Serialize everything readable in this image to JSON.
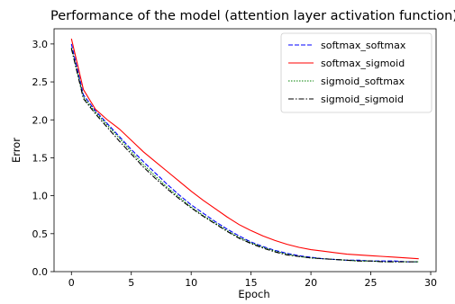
{
  "chart_data": {
    "type": "line",
    "title": "Performance of the model (attention layer activation function)",
    "xlabel": "Epoch",
    "ylabel": "Error",
    "xlim": [
      -1.45,
      30.45
    ],
    "ylim": [
      0,
      3.2
    ],
    "xticks": [
      0,
      5,
      10,
      15,
      20,
      25,
      30
    ],
    "yticks": [
      0.0,
      0.5,
      1.0,
      1.5,
      2.0,
      2.5,
      3.0
    ],
    "xtick_labels": [
      "0",
      "5",
      "10",
      "15",
      "20",
      "25",
      "30"
    ],
    "ytick_labels": [
      "0.0",
      "0.5",
      "1.0",
      "1.5",
      "2.0",
      "2.5",
      "3.0"
    ],
    "grid": false,
    "legend_position": "top-right",
    "x": [
      0,
      1,
      2,
      3,
      4,
      5,
      6,
      7,
      8,
      9,
      10,
      11,
      12,
      13,
      14,
      15,
      16,
      17,
      18,
      19,
      20,
      21,
      22,
      23,
      24,
      25,
      26,
      27,
      28,
      29
    ],
    "series": [
      {
        "name": "softmax_softmax",
        "color": "#0000ff",
        "dash": "dashed",
        "values": [
          3.0,
          2.33,
          2.12,
          1.95,
          1.78,
          1.61,
          1.45,
          1.3,
          1.15,
          1.01,
          0.88,
          0.77,
          0.66,
          0.56,
          0.47,
          0.39,
          0.33,
          0.28,
          0.24,
          0.21,
          0.19,
          0.17,
          0.16,
          0.15,
          0.15,
          0.14,
          0.14,
          0.14,
          0.13,
          0.13
        ]
      },
      {
        "name": "softmax_sigmoid",
        "color": "#ff0000",
        "dash": "solid",
        "values": [
          3.07,
          2.4,
          2.14,
          2.0,
          1.88,
          1.73,
          1.58,
          1.45,
          1.32,
          1.19,
          1.06,
          0.94,
          0.83,
          0.72,
          0.62,
          0.54,
          0.47,
          0.41,
          0.36,
          0.32,
          0.29,
          0.27,
          0.25,
          0.23,
          0.22,
          0.21,
          0.2,
          0.19,
          0.18,
          0.17
        ]
      },
      {
        "name": "sigmoid_softmax",
        "color": "#008000",
        "dash": "dotted",
        "values": [
          2.95,
          2.3,
          2.1,
          1.93,
          1.76,
          1.58,
          1.41,
          1.26,
          1.11,
          0.98,
          0.85,
          0.74,
          0.64,
          0.54,
          0.45,
          0.38,
          0.32,
          0.27,
          0.23,
          0.2,
          0.18,
          0.17,
          0.16,
          0.15,
          0.14,
          0.14,
          0.13,
          0.13,
          0.13,
          0.13
        ]
      },
      {
        "name": "sigmoid_sigmoid",
        "color": "#000000",
        "dash": "dashdot",
        "values": [
          2.94,
          2.28,
          2.08,
          1.9,
          1.72,
          1.55,
          1.38,
          1.23,
          1.09,
          0.96,
          0.84,
          0.73,
          0.63,
          0.53,
          0.44,
          0.37,
          0.31,
          0.26,
          0.22,
          0.2,
          0.18,
          0.17,
          0.16,
          0.15,
          0.14,
          0.14,
          0.13,
          0.13,
          0.13,
          0.13
        ]
      }
    ]
  }
}
